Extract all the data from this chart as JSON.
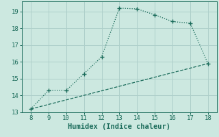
{
  "xlabel": "Humidex (Indice chaleur)",
  "background_color": "#cce8e0",
  "grid_color": "#aecfca",
  "line_color": "#1a6b5a",
  "x_main": [
    8,
    9,
    10,
    11,
    12,
    13,
    14,
    15,
    16,
    17,
    18
  ],
  "y_main": [
    13.2,
    14.3,
    14.3,
    15.3,
    16.3,
    19.2,
    19.15,
    18.8,
    18.4,
    18.3,
    15.9
  ],
  "x_trend": [
    8,
    9,
    10,
    11,
    12,
    13,
    14,
    15,
    16,
    17,
    18
  ],
  "y_trend": [
    13.2,
    13.47,
    13.74,
    14.01,
    14.28,
    14.55,
    14.82,
    15.09,
    15.36,
    15.63,
    15.9
  ],
  "xlim": [
    7.5,
    18.5
  ],
  "ylim": [
    13.0,
    19.6
  ],
  "xticks": [
    8,
    9,
    10,
    11,
    12,
    13,
    14,
    15,
    16,
    17,
    18
  ],
  "yticks": [
    13,
    14,
    15,
    16,
    17,
    18,
    19
  ],
  "tick_fontsize": 6.5,
  "xlabel_fontsize": 7.5
}
